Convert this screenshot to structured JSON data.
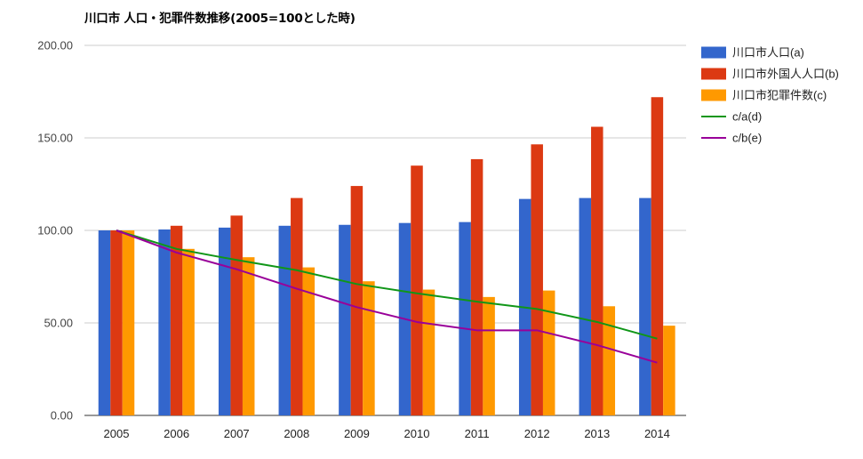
{
  "chart_data": {
    "type": "bar",
    "title": "川口市 人口・犯罪件数推移(2005=100とした時)",
    "categories": [
      "2005",
      "2006",
      "2007",
      "2008",
      "2009",
      "2010",
      "2011",
      "2012",
      "2013",
      "2014"
    ],
    "ylim": [
      0,
      200
    ],
    "yticks": [
      "0.00",
      "50.00",
      "100.00",
      "150.00",
      "200.00"
    ],
    "grid": true,
    "legend_position": "right",
    "series": [
      {
        "name": "川口市人口(a)",
        "kind": "bar",
        "color": "#3366cc",
        "values": [
          100,
          100.5,
          101.5,
          102.5,
          103,
          104,
          104.5,
          117,
          117.5,
          117.5
        ]
      },
      {
        "name": "川口市外国人人口(b)",
        "kind": "bar",
        "color": "#dc3912",
        "values": [
          100,
          102.5,
          108,
          117.5,
          124,
          135,
          138.5,
          146.5,
          156,
          172
        ]
      },
      {
        "name": "川口市犯罪件数(c)",
        "kind": "bar",
        "color": "#ff9900",
        "values": [
          100,
          90,
          85.5,
          80,
          72.5,
          68,
          64,
          67.5,
          59,
          48.5
        ]
      },
      {
        "name": "c/a(d)",
        "kind": "line",
        "color": "#109618",
        "values": [
          100,
          90,
          84,
          78.5,
          71,
          66,
          61.5,
          57.5,
          50.5,
          41.5
        ]
      },
      {
        "name": "c/b(e)",
        "kind": "line",
        "color": "#990099",
        "values": [
          100,
          88,
          79,
          68.5,
          58.5,
          50.5,
          46,
          46,
          38,
          28.5
        ]
      }
    ]
  }
}
